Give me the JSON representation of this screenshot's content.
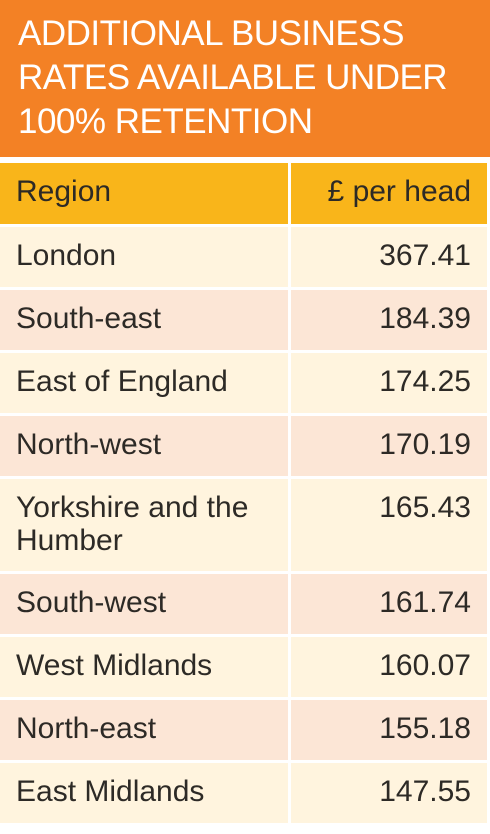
{
  "title": {
    "lines": [
      "ADDITIONAL BUSINESS",
      "RATES AVAILABLE UNDER",
      "100% RETENTION"
    ]
  },
  "colors": {
    "title_bg": "#f38125",
    "header_bg": "#f9b51a",
    "row_light": "#fff4de",
    "row_dark": "#fce6d6"
  },
  "chart_data": {
    "type": "table",
    "title": "ADDITIONAL BUSINESS RATES AVAILABLE UNDER 100% RETENTION",
    "columns": [
      "Region",
      "£ per head"
    ],
    "rows": [
      {
        "region": "London",
        "value": "367.41"
      },
      {
        "region": "South-east",
        "value": "184.39"
      },
      {
        "region": "East of England",
        "value": "174.25"
      },
      {
        "region": "North-west",
        "value": "170.19"
      },
      {
        "region": "Yorkshire and the Humber",
        "value": "165.43"
      },
      {
        "region": "South-west",
        "value": "161.74"
      },
      {
        "region": "West Midlands",
        "value": "160.07"
      },
      {
        "region": "North-east",
        "value": "155.18"
      },
      {
        "region": "East Midlands",
        "value": "147.55"
      }
    ]
  }
}
